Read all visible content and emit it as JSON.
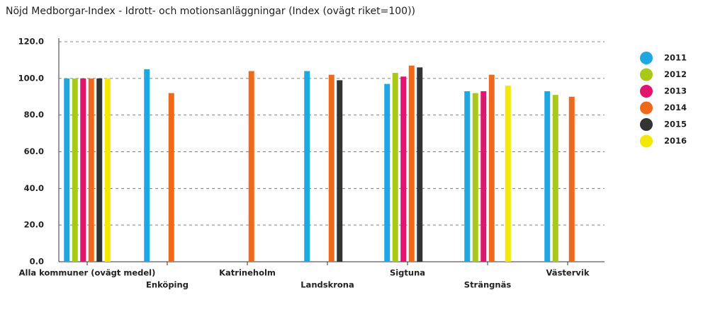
{
  "chart_data": {
    "type": "bar",
    "title": "Nöjd Medborgar-Index - Idrott- och motionsanläggningar (Index (ovägt riket=100))",
    "categories": [
      "Alla kommuner (ovägt medel)",
      "Enköping",
      "Katrineholm",
      "Landskrona",
      "Sigtuna",
      "Strängnäs",
      "Västervik"
    ],
    "series": [
      {
        "name": "2011",
        "color": "#1ea7e0",
        "values": [
          100,
          105,
          null,
          104,
          97,
          93,
          93
        ]
      },
      {
        "name": "2012",
        "color": "#a8c81a",
        "values": [
          100,
          null,
          null,
          null,
          103,
          92,
          91
        ]
      },
      {
        "name": "2013",
        "color": "#e0156e",
        "values": [
          100,
          null,
          null,
          null,
          101,
          93,
          null
        ]
      },
      {
        "name": "2014",
        "color": "#ee6a1a",
        "values": [
          100,
          92,
          104,
          102,
          107,
          102,
          90
        ]
      },
      {
        "name": "2015",
        "color": "#333333",
        "values": [
          100,
          null,
          null,
          99,
          106,
          null,
          null
        ]
      },
      {
        "name": "2016",
        "color": "#f5e800",
        "values": [
          100,
          null,
          null,
          null,
          null,
          96,
          null
        ]
      }
    ],
    "ylim": [
      0,
      120
    ],
    "yticks": [
      {
        "value": 0,
        "label": "0.0"
      },
      {
        "value": 20,
        "label": "20.0"
      },
      {
        "value": 40,
        "label": "40.0"
      },
      {
        "value": 60,
        "label": "60.0"
      },
      {
        "value": 80,
        "label": "80.0"
      },
      {
        "value": 100,
        "label": "100.0"
      },
      {
        "value": 120,
        "label": "120.0"
      }
    ],
    "grid": true,
    "legend": "right"
  }
}
